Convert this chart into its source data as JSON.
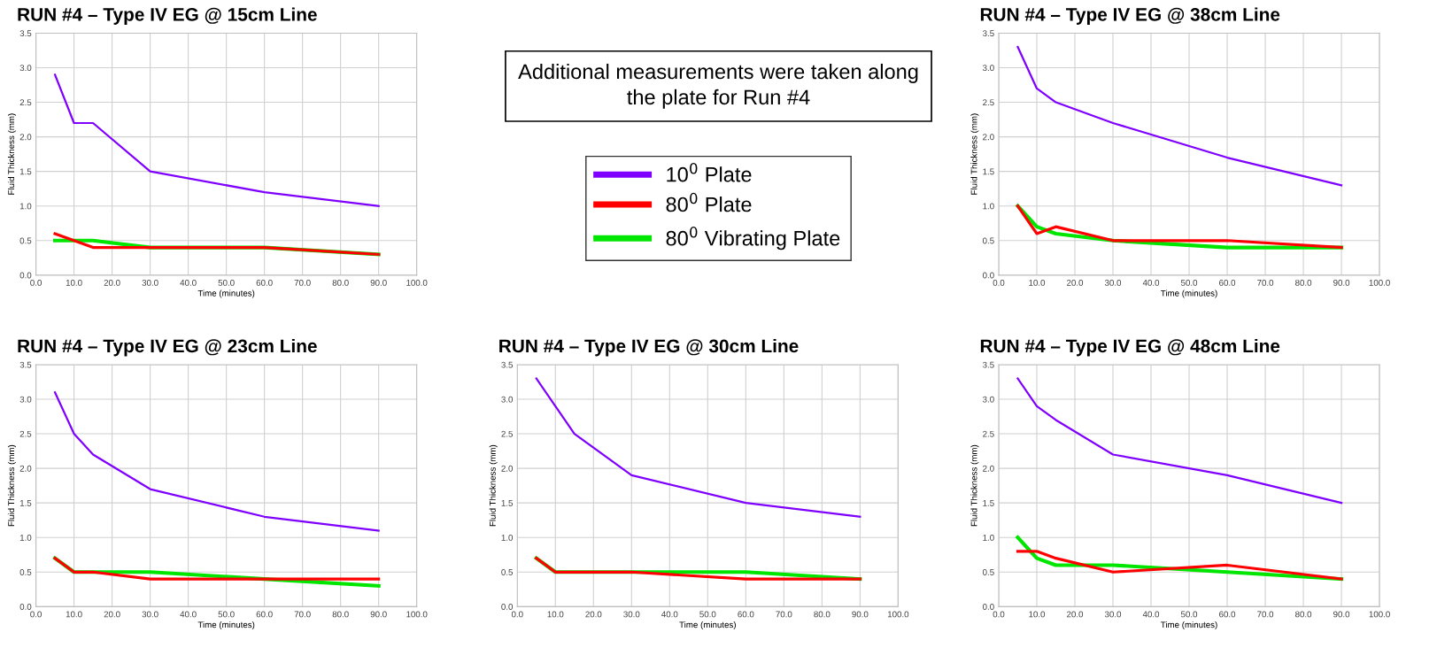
{
  "chart_data": [
    {
      "type": "line",
      "title": "RUN #4 – Type IV EG @ 15cm Line",
      "xlabel": "Time (minutes)",
      "ylabel": "Fluid Thickness (mm)",
      "x": [
        5,
        10,
        15,
        30,
        60,
        90
      ],
      "xlim": [
        0,
        100
      ],
      "ylim": [
        0,
        3.5
      ],
      "xticks": [
        {
          "value": 0,
          "label": "0.0"
        },
        {
          "value": 10,
          "label": "10.0"
        },
        {
          "value": 20,
          "label": "20.0"
        },
        {
          "value": 30,
          "label": "30.0"
        },
        {
          "value": 40,
          "label": "40.0"
        },
        {
          "value": 50,
          "label": "50.0"
        },
        {
          "value": 60,
          "label": "60.0"
        },
        {
          "value": 70,
          "label": "70.0"
        },
        {
          "value": 80,
          "label": "80.0"
        },
        {
          "value": 90,
          "label": "90.0"
        },
        {
          "value": 100,
          "label": "100.0"
        }
      ],
      "yticks": [
        {
          "value": 0,
          "label": "0.0"
        },
        {
          "value": 0.5,
          "label": "0.5"
        },
        {
          "value": 1,
          "label": "1.0"
        },
        {
          "value": 1.5,
          "label": "1.5"
        },
        {
          "value": 2,
          "label": "2.0"
        },
        {
          "value": 2.5,
          "label": "2.5"
        },
        {
          "value": 3,
          "label": "3.0"
        },
        {
          "value": 3.5,
          "label": "3.5"
        }
      ],
      "grid": true,
      "legend": "right",
      "annotations": [
        "Additional measurements were taken along the plate for Run #4"
      ],
      "series": [
        {
          "name": "10$^{0}$ Plate",
          "color": "#7f00ff",
          "values": [
            2.9,
            2.2,
            2.2,
            1.5,
            1.2,
            1.0
          ]
        },
        {
          "name": "80$^{0}$ Plate",
          "color": "#ff0000",
          "values": [
            0.6,
            0.5,
            0.4,
            0.4,
            0.4,
            0.3
          ]
        },
        {
          "name": "80$^{0}$ Vibrating Plate",
          "color": "#00e600",
          "values": [
            0.5,
            0.5,
            0.5,
            0.4,
            0.4,
            0.3
          ]
        }
      ]
    },
    {
      "type": "line",
      "title": "RUN #4 – Type IV EG @ 38cm Line",
      "xlabel": "Time (minutes)",
      "ylabel": "Fluid Thickness (mm)",
      "x": [
        5,
        10,
        15,
        30,
        60,
        90
      ],
      "xlim": [
        0,
        100
      ],
      "ylim": [
        0,
        3.5
      ],
      "xticks": [
        {
          "value": 0,
          "label": "0.0"
        },
        {
          "value": 10,
          "label": "10.0"
        },
        {
          "value": 20,
          "label": "20.0"
        },
        {
          "value": 30,
          "label": "30.0"
        },
        {
          "value": 40,
          "label": "40.0"
        },
        {
          "value": 50,
          "label": "50.0"
        },
        {
          "value": 60,
          "label": "60.0"
        },
        {
          "value": 70,
          "label": "70.0"
        },
        {
          "value": 80,
          "label": "80.0"
        },
        {
          "value": 90,
          "label": "90.0"
        },
        {
          "value": 100,
          "label": "100.0"
        }
      ],
      "yticks": [
        {
          "value": 0,
          "label": "0.0"
        },
        {
          "value": 0.5,
          "label": "0.5"
        },
        {
          "value": 1,
          "label": "1.0"
        },
        {
          "value": 1.5,
          "label": "1.5"
        },
        {
          "value": 2,
          "label": "2.0"
        },
        {
          "value": 2.5,
          "label": "2.5"
        },
        {
          "value": 3,
          "label": "3.0"
        },
        {
          "value": 3.5,
          "label": "3.5"
        }
      ],
      "grid": true,
      "series": [
        {
          "color": "#7f00ff",
          "values": [
            3.3,
            2.7,
            2.5,
            2.2,
            1.7,
            1.3
          ]
        },
        {
          "color": "#ff0000",
          "values": [
            1.0,
            0.6,
            0.7,
            0.5,
            0.5,
            0.4
          ]
        },
        {
          "color": "#00e600",
          "values": [
            1.0,
            0.7,
            0.6,
            0.5,
            0.4,
            0.4
          ]
        }
      ]
    },
    {
      "type": "line",
      "title": "RUN #4 – Type IV EG @ 23cm Line",
      "xlabel": "Time (minutes)",
      "ylabel": "Fluid Thickness (mm)",
      "x": [
        5,
        10,
        15,
        30,
        60,
        90
      ],
      "xlim": [
        0,
        100
      ],
      "ylim": [
        0,
        3.5
      ],
      "xticks": [
        {
          "value": 0,
          "label": "0.0"
        },
        {
          "value": 10,
          "label": "10.0"
        },
        {
          "value": 20,
          "label": "20.0"
        },
        {
          "value": 30,
          "label": "30.0"
        },
        {
          "value": 40,
          "label": "40.0"
        },
        {
          "value": 50,
          "label": "50.0"
        },
        {
          "value": 60,
          "label": "60.0"
        },
        {
          "value": 70,
          "label": "70.0"
        },
        {
          "value": 80,
          "label": "80.0"
        },
        {
          "value": 90,
          "label": "90.0"
        },
        {
          "value": 100,
          "label": "100.0"
        }
      ],
      "yticks": [
        {
          "value": 0,
          "label": "0.0"
        },
        {
          "value": 0.5,
          "label": "0.5"
        },
        {
          "value": 1,
          "label": "1.0"
        },
        {
          "value": 1.5,
          "label": "1.5"
        },
        {
          "value": 2,
          "label": "2.0"
        },
        {
          "value": 2.5,
          "label": "2.5"
        },
        {
          "value": 3,
          "label": "3.0"
        },
        {
          "value": 3.5,
          "label": "3.5"
        }
      ],
      "grid": true,
      "series": [
        {
          "color": "#7f00ff",
          "values": [
            3.1,
            2.5,
            2.2,
            1.7,
            1.3,
            1.1
          ]
        },
        {
          "color": "#ff0000",
          "values": [
            0.7,
            0.5,
            0.5,
            0.4,
            0.4,
            0.4
          ]
        },
        {
          "color": "#00e600",
          "values": [
            0.7,
            0.5,
            0.5,
            0.5,
            0.4,
            0.3
          ]
        }
      ]
    },
    {
      "type": "line",
      "title": "RUN #4 – Type IV EG @ 30cm Line",
      "xlabel": "Time (minutes)",
      "ylabel": "Fluid Thickness (mm)",
      "x": [
        5,
        10,
        15,
        30,
        60,
        90
      ],
      "xlim": [
        0,
        100
      ],
      "ylim": [
        0,
        3.5
      ],
      "xticks": [
        {
          "value": 0,
          "label": "0.0"
        },
        {
          "value": 10,
          "label": "10.0"
        },
        {
          "value": 20,
          "label": "20.0"
        },
        {
          "value": 30,
          "label": "30.0"
        },
        {
          "value": 40,
          "label": "40.0"
        },
        {
          "value": 50,
          "label": "50.0"
        },
        {
          "value": 60,
          "label": "60.0"
        },
        {
          "value": 70,
          "label": "70.0"
        },
        {
          "value": 80,
          "label": "80.0"
        },
        {
          "value": 90,
          "label": "90.0"
        },
        {
          "value": 100,
          "label": "100.0"
        }
      ],
      "yticks": [
        {
          "value": 0,
          "label": "0.0"
        },
        {
          "value": 0.5,
          "label": "0.5"
        },
        {
          "value": 1,
          "label": "1.0"
        },
        {
          "value": 1.5,
          "label": "1.5"
        },
        {
          "value": 2,
          "label": "2.0"
        },
        {
          "value": 2.5,
          "label": "2.5"
        },
        {
          "value": 3,
          "label": "3.0"
        },
        {
          "value": 3.5,
          "label": "3.5"
        }
      ],
      "grid": true,
      "series": [
        {
          "color": "#7f00ff",
          "values": [
            3.3,
            2.9,
            2.5,
            1.9,
            1.5,
            1.3
          ]
        },
        {
          "color": "#ff0000",
          "values": [
            0.7,
            0.5,
            0.5,
            0.5,
            0.4,
            0.4
          ]
        },
        {
          "color": "#00e600",
          "values": [
            0.7,
            0.5,
            0.5,
            0.5,
            0.5,
            0.4
          ]
        }
      ]
    },
    {
      "type": "line",
      "title": "RUN #4 – Type IV EG @ 48cm Line",
      "xlabel": "Time (minutes)",
      "ylabel": "Fluid Thickness (mm)",
      "x": [
        5,
        10,
        15,
        30,
        60,
        90
      ],
      "xlim": [
        0,
        100
      ],
      "ylim": [
        0,
        3.5
      ],
      "xticks": [
        {
          "value": 0,
          "label": "0.0"
        },
        {
          "value": 10,
          "label": "10.0"
        },
        {
          "value": 20,
          "label": "20.0"
        },
        {
          "value": 30,
          "label": "30.0"
        },
        {
          "value": 40,
          "label": "40.0"
        },
        {
          "value": 50,
          "label": "50.0"
        },
        {
          "value": 60,
          "label": "60.0"
        },
        {
          "value": 70,
          "label": "70.0"
        },
        {
          "value": 80,
          "label": "80.0"
        },
        {
          "value": 90,
          "label": "90.0"
        },
        {
          "value": 100,
          "label": "100.0"
        }
      ],
      "yticks": [
        {
          "value": 0,
          "label": "0.0"
        },
        {
          "value": 0.5,
          "label": "0.5"
        },
        {
          "value": 1,
          "label": "1.0"
        },
        {
          "value": 1.5,
          "label": "1.5"
        },
        {
          "value": 2,
          "label": "2.0"
        },
        {
          "value": 2.5,
          "label": "2.5"
        },
        {
          "value": 3,
          "label": "3.0"
        },
        {
          "value": 3.5,
          "label": "3.5"
        }
      ],
      "grid": true,
      "series": [
        {
          "color": "#7f00ff",
          "values": [
            3.3,
            2.9,
            2.7,
            2.2,
            1.9,
            1.5
          ]
        },
        {
          "color": "#ff0000",
          "values": [
            0.8,
            0.8,
            0.7,
            0.5,
            0.6,
            0.4
          ]
        },
        {
          "color": "#00e600",
          "values": [
            1.0,
            0.7,
            0.6,
            0.6,
            0.5,
            0.4
          ]
        }
      ]
    }
  ]
}
